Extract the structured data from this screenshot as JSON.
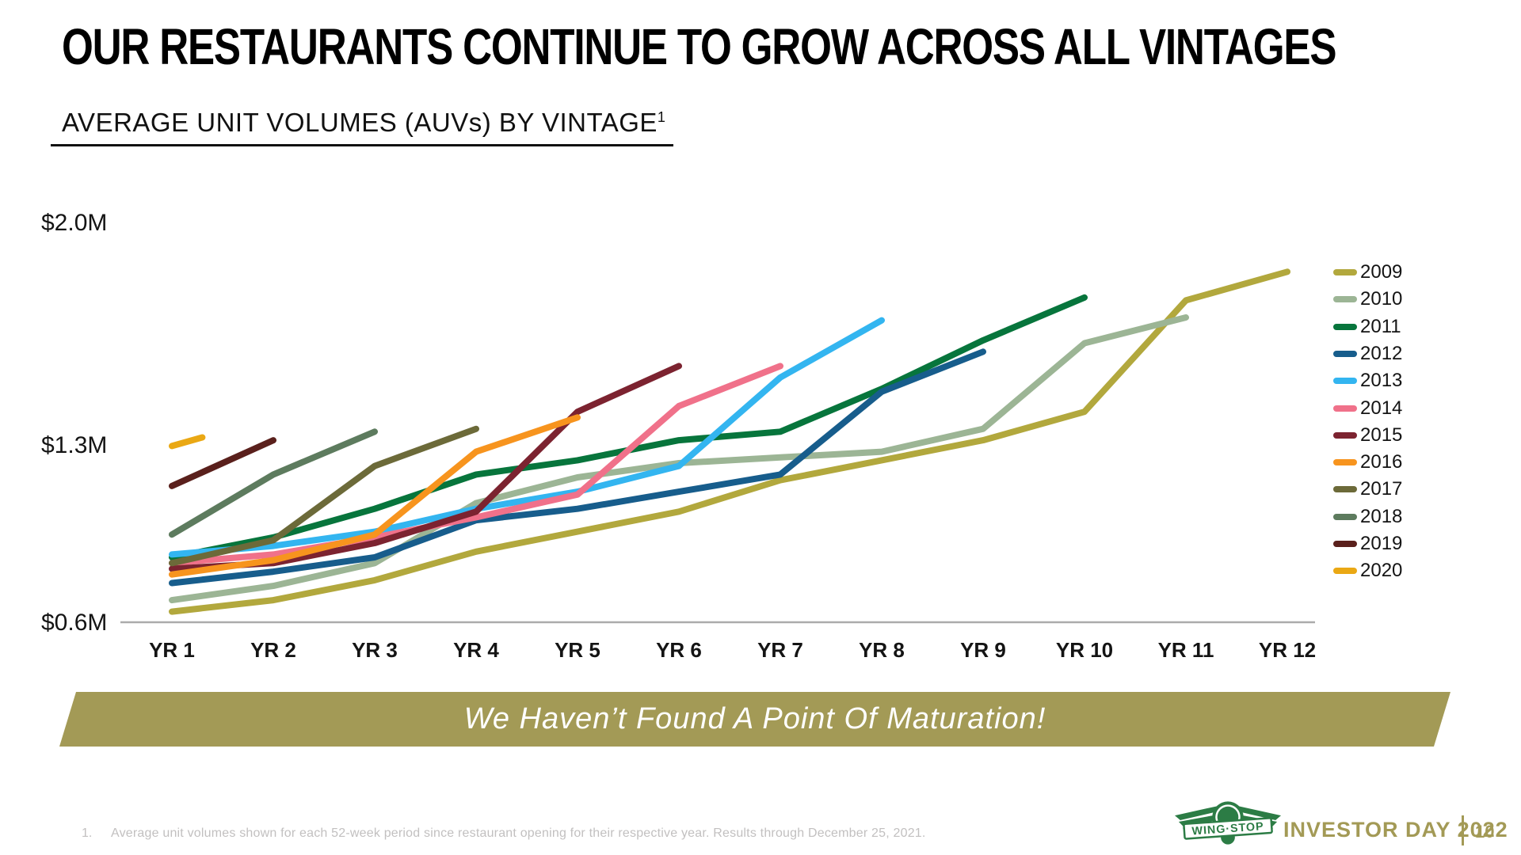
{
  "slide": {
    "title": "OUR RESTAURANTS CONTINUE TO GROW ACROSS ALL VINTAGES",
    "subtitle": "AVERAGE UNIT VOLUMES (AUVs) BY VINTAGE",
    "subtitle_superscript": "1",
    "banner_text": "We Haven’t Found A Point Of Maturation!",
    "footnote_number": "1.",
    "footnote": "Average unit volumes shown for each 52-week period since restaurant opening for their respective year. Results through December 25, 2021.",
    "footer_brand": "INVESTOR DAY 2022",
    "page_number": "10",
    "logo_text": "WING·STOP"
  },
  "colors": {
    "banner_olive": "#a39a56",
    "logo_green": "#2c7c45",
    "axis_gray": "#ababab",
    "footnote_gray": "#c2c0c0"
  },
  "chart_data": {
    "type": "line",
    "title": "AVERAGE UNIT VOLUMES (AUVs) BY VINTAGE",
    "unit": "$M",
    "x_labels": [
      "YR 1",
      "YR 2",
      "YR 3",
      "YR 4",
      "YR 5",
      "YR 6",
      "YR 7",
      "YR 8",
      "YR 9",
      "YR 10",
      "YR 11",
      "YR 12"
    ],
    "y_labels": [
      "$2.0M",
      "$1.3M",
      "$0.6M"
    ],
    "y_label_values": [
      2.0,
      1.3,
      0.6
    ],
    "ylim": [
      0.6,
      2.0
    ],
    "grid": false,
    "legend_position": "right",
    "series": [
      {
        "name": "2009",
        "color": "#b2a83d",
        "values": [
          0.64,
          0.68,
          0.75,
          0.85,
          0.92,
          0.99,
          1.1,
          1.17,
          1.24,
          1.34,
          1.73,
          1.83
        ]
      },
      {
        "name": "2010",
        "color": "#9cb595",
        "values": [
          0.68,
          0.73,
          0.81,
          1.02,
          1.11,
          1.16,
          1.18,
          1.2,
          1.28,
          1.58,
          1.67
        ]
      },
      {
        "name": "2011",
        "color": "#07753c",
        "values": [
          0.83,
          0.9,
          1.0,
          1.12,
          1.17,
          1.24,
          1.27,
          1.42,
          1.59,
          1.74
        ]
      },
      {
        "name": "2012",
        "color": "#175d8c",
        "values": [
          0.74,
          0.78,
          0.83,
          0.96,
          1.0,
          1.06,
          1.12,
          1.41,
          1.55
        ]
      },
      {
        "name": "2013",
        "color": "#33b5f0",
        "values": [
          0.84,
          0.87,
          0.92,
          1.0,
          1.06,
          1.15,
          1.46,
          1.66
        ]
      },
      {
        "name": "2014",
        "color": "#f0718a",
        "values": [
          0.81,
          0.84,
          0.9,
          0.97,
          1.05,
          1.36,
          1.5
        ]
      },
      {
        "name": "2015",
        "color": "#7c2330",
        "values": [
          0.79,
          0.81,
          0.88,
          0.99,
          1.34,
          1.5
        ]
      },
      {
        "name": "2016",
        "color": "#f7941e",
        "values": [
          0.77,
          0.82,
          0.91,
          1.2,
          1.32
        ]
      },
      {
        "name": "2017",
        "color": "#6c6a39",
        "values": [
          0.81,
          0.89,
          1.15,
          1.28
        ]
      },
      {
        "name": "2018",
        "color": "#5d7b5e",
        "values": [
          0.91,
          1.12,
          1.27
        ]
      },
      {
        "name": "2019",
        "color": "#5a201c",
        "values": [
          1.08,
          1.24
        ]
      },
      {
        "name": "2020",
        "color": "#eaa814",
        "x": [
          1,
          1.3
        ],
        "values": [
          1.22,
          1.25
        ]
      }
    ]
  }
}
